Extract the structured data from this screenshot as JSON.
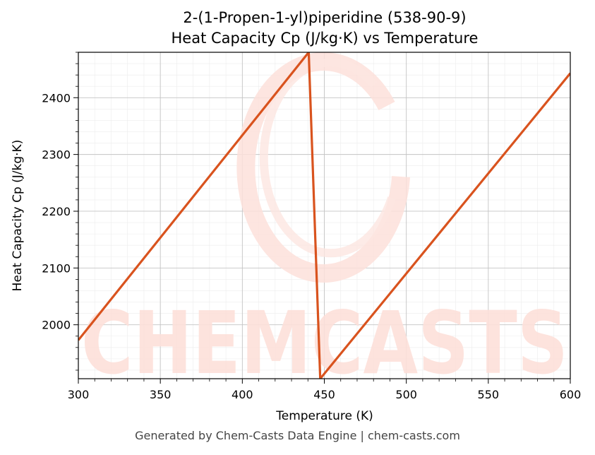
{
  "chart_data": {
    "type": "line",
    "title": "2-(1-Propen-1-yl)piperidine (538-90-9)",
    "subtitle": "Heat Capacity Cp (J/kg·K) vs Temperature",
    "xlabel": "Temperature (K)",
    "ylabel": "Heat Capacity Cp (J/kg·K)",
    "xlim": [
      300,
      600
    ],
    "ylim": [
      1905,
      2480
    ],
    "xticks": [
      300,
      350,
      400,
      450,
      500,
      550,
      600
    ],
    "yticks": [
      2000,
      2100,
      2200,
      2300,
      2400
    ],
    "grid": true,
    "series": [
      {
        "color": "#d9531e",
        "x": [
          300,
          440.5,
          447.5,
          600
        ],
        "y": [
          1973,
          2480,
          1905,
          2443
        ]
      }
    ]
  },
  "watermark": "CHEMCASTS",
  "footer": "Generated by Chem-Casts Data Engine | chem-casts.com"
}
